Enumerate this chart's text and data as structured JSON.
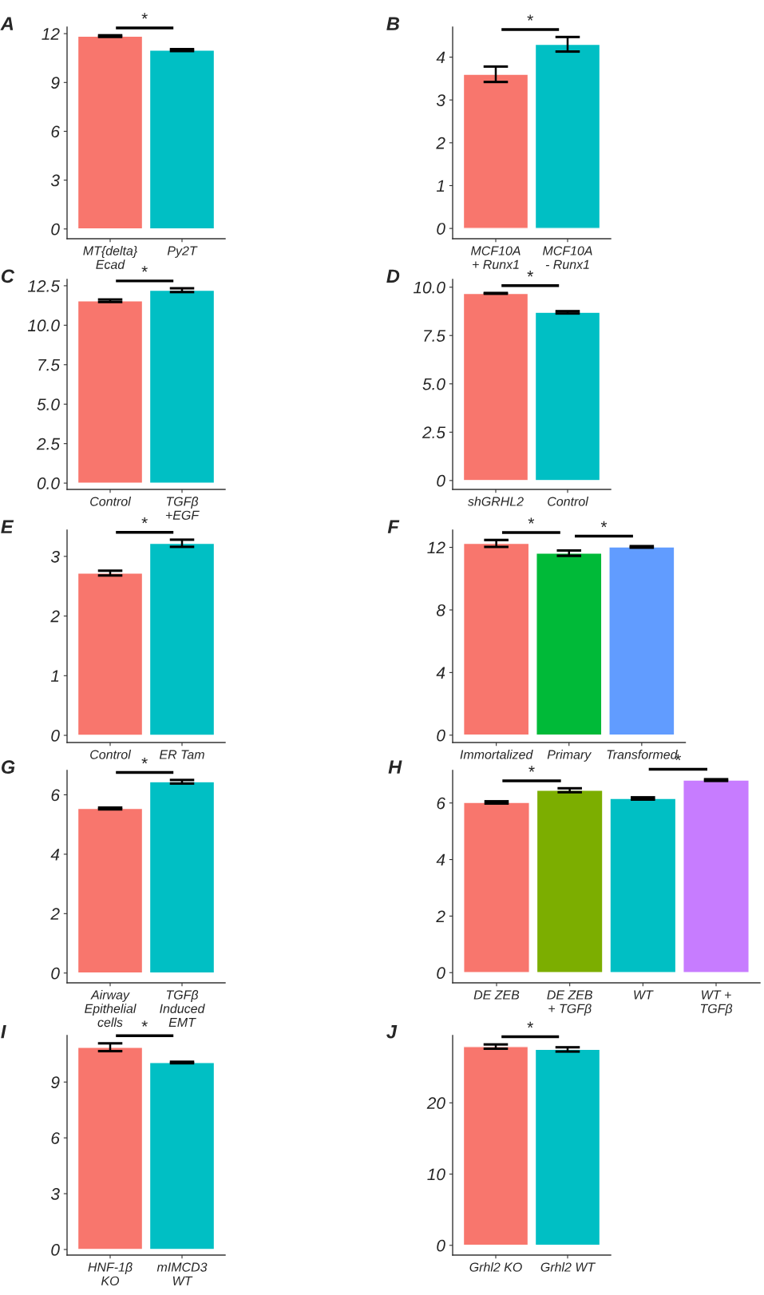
{
  "chart_data": [
    {
      "type": "bar",
      "title": "A",
      "categories": [
        "MT{delta}\nEcad",
        "Py2T"
      ],
      "values": [
        11.85,
        10.99
      ],
      "errors": [
        0.05,
        0.06
      ],
      "colors": [
        "#f8766d",
        "#00bfc4"
      ],
      "ylim": [
        -0.6,
        12.4
      ],
      "yticks": [
        0,
        3,
        6,
        9,
        12
      ],
      "annotations": [
        "*"
      ]
    },
    {
      "type": "bar",
      "title": "B",
      "categories": [
        "MCF10A\n+ Runx1",
        "MCF10A\n- Runx1"
      ],
      "values": [
        3.6,
        4.3
      ],
      "errors": [
        0.18,
        0.17
      ],
      "colors": [
        "#f8766d",
        "#00bfc4"
      ],
      "ylim": [
        -0.24,
        4.7
      ],
      "yticks": [
        0,
        1,
        2,
        3,
        4
      ],
      "annotations": [
        "*"
      ]
    },
    {
      "type": "bar",
      "title": "C",
      "categories": [
        "Control",
        "TGFβ\n+EGF"
      ],
      "values": [
        11.55,
        12.22
      ],
      "errors": [
        0.08,
        0.12
      ],
      "colors": [
        "#f8766d",
        "#00bfc4"
      ],
      "ylim": [
        -0.4,
        12.9
      ],
      "yticks": [
        {
          "value": 0,
          "label": "0.0"
        },
        {
          "value": 2.5,
          "label": "2.5"
        },
        {
          "value": 5,
          "label": "5.0"
        },
        {
          "value": 7.5,
          "label": "7.5"
        },
        {
          "value": 10,
          "label": "10.0"
        },
        {
          "value": 12.5,
          "label": "12.5"
        }
      ],
      "annotations": [
        "*"
      ]
    },
    {
      "type": "bar",
      "title": "D",
      "categories": [
        "shGRHL2",
        "Control"
      ],
      "values": [
        9.68,
        8.7
      ],
      "errors": [
        0.02,
        0.06
      ],
      "colors": [
        "#f8766d",
        "#00bfc4"
      ],
      "ylim": [
        -0.46,
        10.4
      ],
      "yticks": [
        0,
        {
          "value": 2.5,
          "label": "2.5"
        },
        {
          "value": 5,
          "label": "5.0"
        },
        {
          "value": 7.5,
          "label": "7.5"
        },
        {
          "value": 10,
          "label": "10.0"
        }
      ],
      "annotations": [
        "*"
      ]
    },
    {
      "type": "bar",
      "title": "E",
      "categories": [
        "Control",
        "ER Tam"
      ],
      "values": [
        2.72,
        3.22
      ],
      "errors": [
        0.04,
        0.06
      ],
      "colors": [
        "#f8766d",
        "#00bfc4"
      ],
      "ylim": [
        -0.12,
        3.44
      ],
      "yticks": [
        0,
        1,
        2,
        3
      ],
      "annotations": [
        "*"
      ]
    },
    {
      "type": "bar",
      "title": "F",
      "categories": [
        "Immortalized",
        "Primary",
        "Transformed"
      ],
      "values": [
        12.25,
        11.63,
        12.03
      ],
      "errors": [
        0.22,
        0.17,
        0.05
      ],
      "colors": [
        "#f8766d",
        "#00ba38",
        "#619cff"
      ],
      "ylim": [
        -0.47,
        13.1
      ],
      "yticks": [
        0,
        4,
        8,
        12
      ],
      "annotations": [
        "*",
        "*"
      ]
    },
    {
      "type": "bar",
      "title": "G",
      "categories": [
        "Airway\nEpithelial\ncells",
        "TGFβ\nInduced\nEMT"
      ],
      "values": [
        5.54,
        6.44
      ],
      "errors": [
        0.03,
        0.06
      ],
      "colors": [
        "#f8766d",
        "#00bfc4"
      ],
      "ylim": [
        -0.33,
        6.82
      ],
      "yticks": [
        0,
        2,
        4,
        6
      ],
      "annotations": [
        "*"
      ]
    },
    {
      "type": "bar",
      "title": "H",
      "categories": [
        "DE ZEB",
        "DE ZEB\n+ TGFβ",
        "WT",
        "WT +\nTGFβ"
      ],
      "values": [
        6.02,
        6.45,
        6.16,
        6.81
      ],
      "errors": [
        0.04,
        0.07,
        0.04,
        0.03
      ],
      "colors": [
        "#f8766d",
        "#7cae00",
        "#00bfc4",
        "#c77cff"
      ],
      "ylim": [
        -0.36,
        7.15
      ],
      "yticks": [
        0,
        2,
        4,
        6
      ],
      "annotations": [
        "*",
        "*"
      ]
    },
    {
      "type": "bar",
      "title": "I",
      "categories": [
        "HNF-1β\nKO",
        "mIMCD3\nWT"
      ],
      "values": [
        10.87,
        10.05
      ],
      "errors": [
        0.21,
        0.04
      ],
      "colors": [
        "#f8766d",
        "#00bfc4"
      ],
      "ylim": [
        -0.3,
        11.5
      ],
      "yticks": [
        0,
        3,
        6,
        9
      ],
      "annotations": [
        "*"
      ]
    },
    {
      "type": "bar",
      "title": "J",
      "categories": [
        "Grhl2 KO",
        "Grhl2 WT"
      ],
      "values": [
        27.9,
        27.5
      ],
      "errors": [
        0.3,
        0.3
      ],
      "colors": [
        "#f8766d",
        "#00bfc4"
      ],
      "ylim": [
        -1.37,
        29.45
      ],
      "yticks": [
        0,
        10,
        20
      ],
      "annotations": [
        "*"
      ]
    }
  ]
}
